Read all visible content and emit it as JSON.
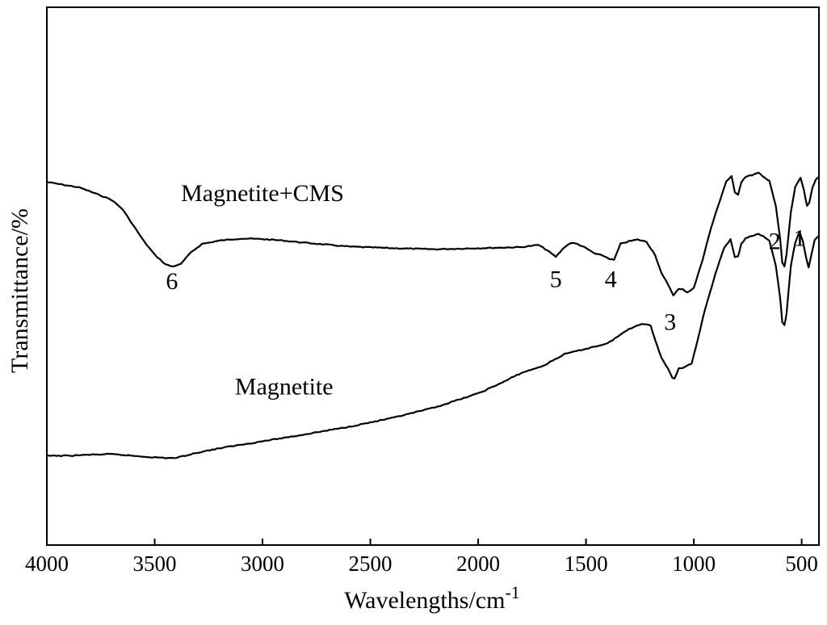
{
  "chart_data": {
    "type": "line",
    "title": "",
    "xlabel": "Wavelengths/cm",
    "xlabel_superscript": "-1",
    "ylabel": "Transmittance/%",
    "xlim": [
      4000,
      420
    ],
    "x_reversed": true,
    "ylim": [
      0,
      100
    ],
    "y_ticks_labeled": false,
    "grid": false,
    "legend": "none",
    "x_ticks": [
      4000,
      3500,
      3000,
      2500,
      2000,
      1500,
      1000,
      500
    ],
    "x_tick_labels": [
      "4000",
      "3500",
      "3000",
      "2500",
      "2000",
      "1500",
      "1000",
      "500"
    ],
    "line_color": "#000000",
    "series": [
      {
        "name": "Magnetite+CMS",
        "label_at": [
          3000,
          64
        ],
        "points": [
          [
            4000,
            67.5
          ],
          [
            3850,
            66.5
          ],
          [
            3750,
            65.0
          ],
          [
            3700,
            64.2
          ],
          [
            3650,
            62.5
          ],
          [
            3600,
            59.5
          ],
          [
            3550,
            56.5
          ],
          [
            3500,
            54.0
          ],
          [
            3450,
            52.2
          ],
          [
            3420,
            51.8
          ],
          [
            3380,
            52.2
          ],
          [
            3330,
            54.5
          ],
          [
            3280,
            56.0
          ],
          [
            3200,
            56.6
          ],
          [
            3100,
            57.0
          ],
          [
            3000,
            56.9
          ],
          [
            2900,
            56.6
          ],
          [
            2800,
            56.2
          ],
          [
            2600,
            55.5
          ],
          [
            2400,
            55.2
          ],
          [
            2200,
            55.0
          ],
          [
            2000,
            55.2
          ],
          [
            1800,
            55.4
          ],
          [
            1720,
            55.8
          ],
          [
            1680,
            54.8
          ],
          [
            1640,
            53.6
          ],
          [
            1600,
            55.4
          ],
          [
            1570,
            56.2
          ],
          [
            1540,
            56.0
          ],
          [
            1500,
            55.2
          ],
          [
            1460,
            54.2
          ],
          [
            1420,
            53.8
          ],
          [
            1390,
            53.2
          ],
          [
            1370,
            53.0
          ],
          [
            1340,
            56.0
          ],
          [
            1300,
            56.5
          ],
          [
            1260,
            56.8
          ],
          [
            1220,
            56.4
          ],
          [
            1180,
            54.0
          ],
          [
            1150,
            50.5
          ],
          [
            1120,
            48.5
          ],
          [
            1095,
            46.5
          ],
          [
            1070,
            47.6
          ],
          [
            1050,
            47.5
          ],
          [
            1030,
            47.0
          ],
          [
            1000,
            47.8
          ],
          [
            960,
            53.0
          ],
          [
            920,
            59.0
          ],
          [
            880,
            64.0
          ],
          [
            850,
            67.6
          ],
          [
            825,
            68.6
          ],
          [
            810,
            65.5
          ],
          [
            795,
            65.2
          ],
          [
            780,
            67.5
          ],
          [
            760,
            68.5
          ],
          [
            730,
            68.8
          ],
          [
            700,
            69.2
          ],
          [
            680,
            68.5
          ],
          [
            650,
            67.8
          ],
          [
            620,
            63.0
          ],
          [
            600,
            57.0
          ],
          [
            590,
            52.5
          ],
          [
            580,
            51.8
          ],
          [
            570,
            54.0
          ],
          [
            550,
            62.0
          ],
          [
            530,
            66.5
          ],
          [
            505,
            68.3
          ],
          [
            490,
            66.0
          ],
          [
            475,
            63.0
          ],
          [
            465,
            63.6
          ],
          [
            450,
            66.5
          ],
          [
            435,
            68.0
          ],
          [
            420,
            68.4
          ]
        ]
      },
      {
        "name": "Magnetite",
        "label_at": [
          2900,
          28
        ],
        "points": [
          [
            4000,
            16.6
          ],
          [
            3900,
            16.6
          ],
          [
            3800,
            16.8
          ],
          [
            3700,
            16.9
          ],
          [
            3600,
            16.6
          ],
          [
            3500,
            16.3
          ],
          [
            3450,
            16.2
          ],
          [
            3400,
            16.2
          ],
          [
            3300,
            17.2
          ],
          [
            3200,
            18.0
          ],
          [
            3000,
            19.3
          ],
          [
            2800,
            20.6
          ],
          [
            2600,
            22.0
          ],
          [
            2400,
            23.6
          ],
          [
            2200,
            25.6
          ],
          [
            2000,
            28.2
          ],
          [
            1900,
            30.0
          ],
          [
            1800,
            32.0
          ],
          [
            1700,
            33.3
          ],
          [
            1600,
            35.5
          ],
          [
            1500,
            36.5
          ],
          [
            1400,
            37.5
          ],
          [
            1300,
            40.2
          ],
          [
            1240,
            41.2
          ],
          [
            1200,
            40.8
          ],
          [
            1180,
            38.2
          ],
          [
            1150,
            34.8
          ],
          [
            1120,
            32.8
          ],
          [
            1100,
            31.2
          ],
          [
            1090,
            31.0
          ],
          [
            1070,
            32.8
          ],
          [
            1050,
            33.0
          ],
          [
            1030,
            33.4
          ],
          [
            1010,
            33.8
          ],
          [
            990,
            36.8
          ],
          [
            950,
            43.5
          ],
          [
            900,
            50.5
          ],
          [
            860,
            55.2
          ],
          [
            830,
            56.8
          ],
          [
            810,
            53.6
          ],
          [
            795,
            53.6
          ],
          [
            780,
            56.0
          ],
          [
            760,
            57.0
          ],
          [
            730,
            57.5
          ],
          [
            700,
            57.8
          ],
          [
            680,
            57.5
          ],
          [
            650,
            56.6
          ],
          [
            620,
            52.0
          ],
          [
            600,
            46.0
          ],
          [
            590,
            41.5
          ],
          [
            580,
            40.8
          ],
          [
            570,
            43.0
          ],
          [
            550,
            52.0
          ],
          [
            530,
            56.2
          ],
          [
            510,
            58.3
          ],
          [
            495,
            56.5
          ],
          [
            480,
            53.5
          ],
          [
            468,
            51.6
          ],
          [
            455,
            54.0
          ],
          [
            440,
            56.8
          ],
          [
            420,
            57.5
          ]
        ]
      }
    ],
    "annotations": [
      {
        "text": "6",
        "x": 3420,
        "y": 47.6
      },
      {
        "text": "5",
        "x": 1640,
        "y": 48.0
      },
      {
        "text": "4",
        "x": 1385,
        "y": 48.0
      },
      {
        "text": "3",
        "x": 1110,
        "y": 40.0
      },
      {
        "text": "2",
        "x": 625,
        "y": 55.0
      },
      {
        "text": "1",
        "x": 510,
        "y": 55.6
      }
    ]
  }
}
